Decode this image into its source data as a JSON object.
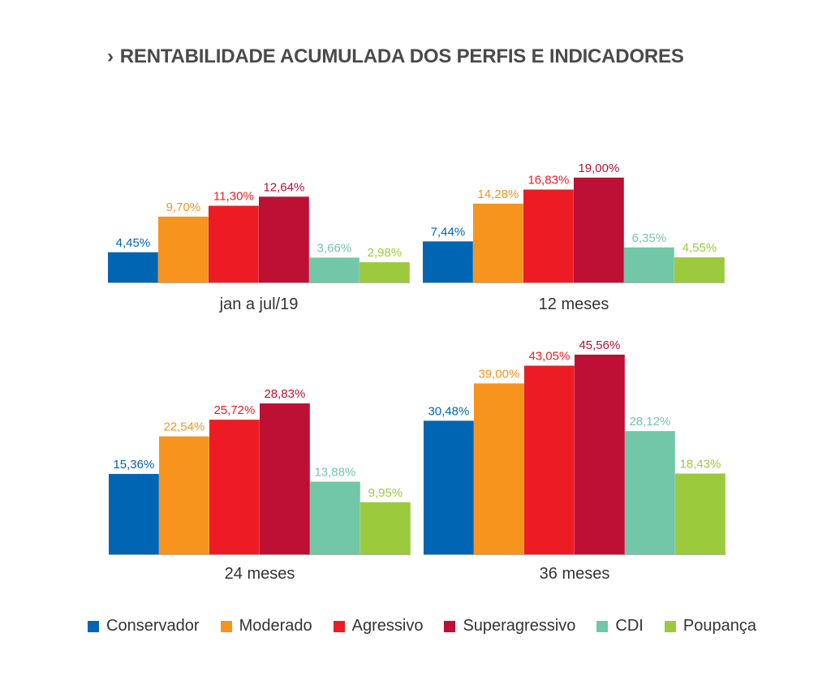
{
  "title": "RENTABILIDADE ACUMULADA DOS PERFIS E INDICADORES",
  "title_marker": "›",
  "colors": {
    "Conservador": "#0066b3",
    "Moderado": "#f7941d",
    "Agressivo": "#ed1c24",
    "Superagressivo": "#be0f34",
    "CDI": "#72c7a8",
    "Poupança": "#9bcb3c"
  },
  "legend": [
    "Conservador",
    "Moderado",
    "Agressivo",
    "Superagressivo",
    "CDI",
    "Poupança"
  ],
  "chart_data": [
    {
      "type": "bar",
      "panel_label": "jan a jul/19",
      "series": [
        {
          "name": "Conservador",
          "value": 4.45,
          "label": "4,45%"
        },
        {
          "name": "Moderado",
          "value": 9.7,
          "label": "9,70%"
        },
        {
          "name": "Agressivo",
          "value": 11.3,
          "label": "11,30%"
        },
        {
          "name": "Superagressivo",
          "value": 12.64,
          "label": "12,64%"
        },
        {
          "name": "CDI",
          "value": 3.66,
          "label": "3,66%"
        },
        {
          "name": "Poupança",
          "value": 2.98,
          "label": "2,98%"
        }
      ]
    },
    {
      "type": "bar",
      "panel_label": "12 meses",
      "series": [
        {
          "name": "Conservador",
          "value": 7.44,
          "label": "7,44%"
        },
        {
          "name": "Moderado",
          "value": 14.28,
          "label": "14,28%"
        },
        {
          "name": "Agressivo",
          "value": 16.83,
          "label": "16,83%"
        },
        {
          "name": "Superagressivo",
          "value": 19.0,
          "label": "19,00%"
        },
        {
          "name": "CDI",
          "value": 6.35,
          "label": "6,35%"
        },
        {
          "name": "Poupança",
          "value": 4.55,
          "label": "4,55%"
        }
      ]
    },
    {
      "type": "bar",
      "panel_label": "24 meses",
      "series": [
        {
          "name": "Conservador",
          "value": 15.36,
          "label": "15,36%"
        },
        {
          "name": "Moderado",
          "value": 22.54,
          "label": "22,54%"
        },
        {
          "name": "Agressivo",
          "value": 25.72,
          "label": "25,72%"
        },
        {
          "name": "Superagressivo",
          "value": 28.83,
          "label": "28,83%"
        },
        {
          "name": "CDI",
          "value": 13.88,
          "label": "13,88%"
        },
        {
          "name": "Poupança",
          "value": 9.95,
          "label": "9,95%"
        }
      ]
    },
    {
      "type": "bar",
      "panel_label": "36 meses",
      "series": [
        {
          "name": "Conservador",
          "value": 30.48,
          "label": "30,48%"
        },
        {
          "name": "Moderado",
          "value": 39.0,
          "label": "39,00%"
        },
        {
          "name": "Agressivo",
          "value": 43.05,
          "label": "43,05%"
        },
        {
          "name": "Superagressivo",
          "value": 45.56,
          "label": "45,56%"
        },
        {
          "name": "CDI",
          "value": 28.12,
          "label": "28,12%"
        },
        {
          "name": "Poupança",
          "value": 18.43,
          "label": "18,43%"
        }
      ]
    }
  ]
}
